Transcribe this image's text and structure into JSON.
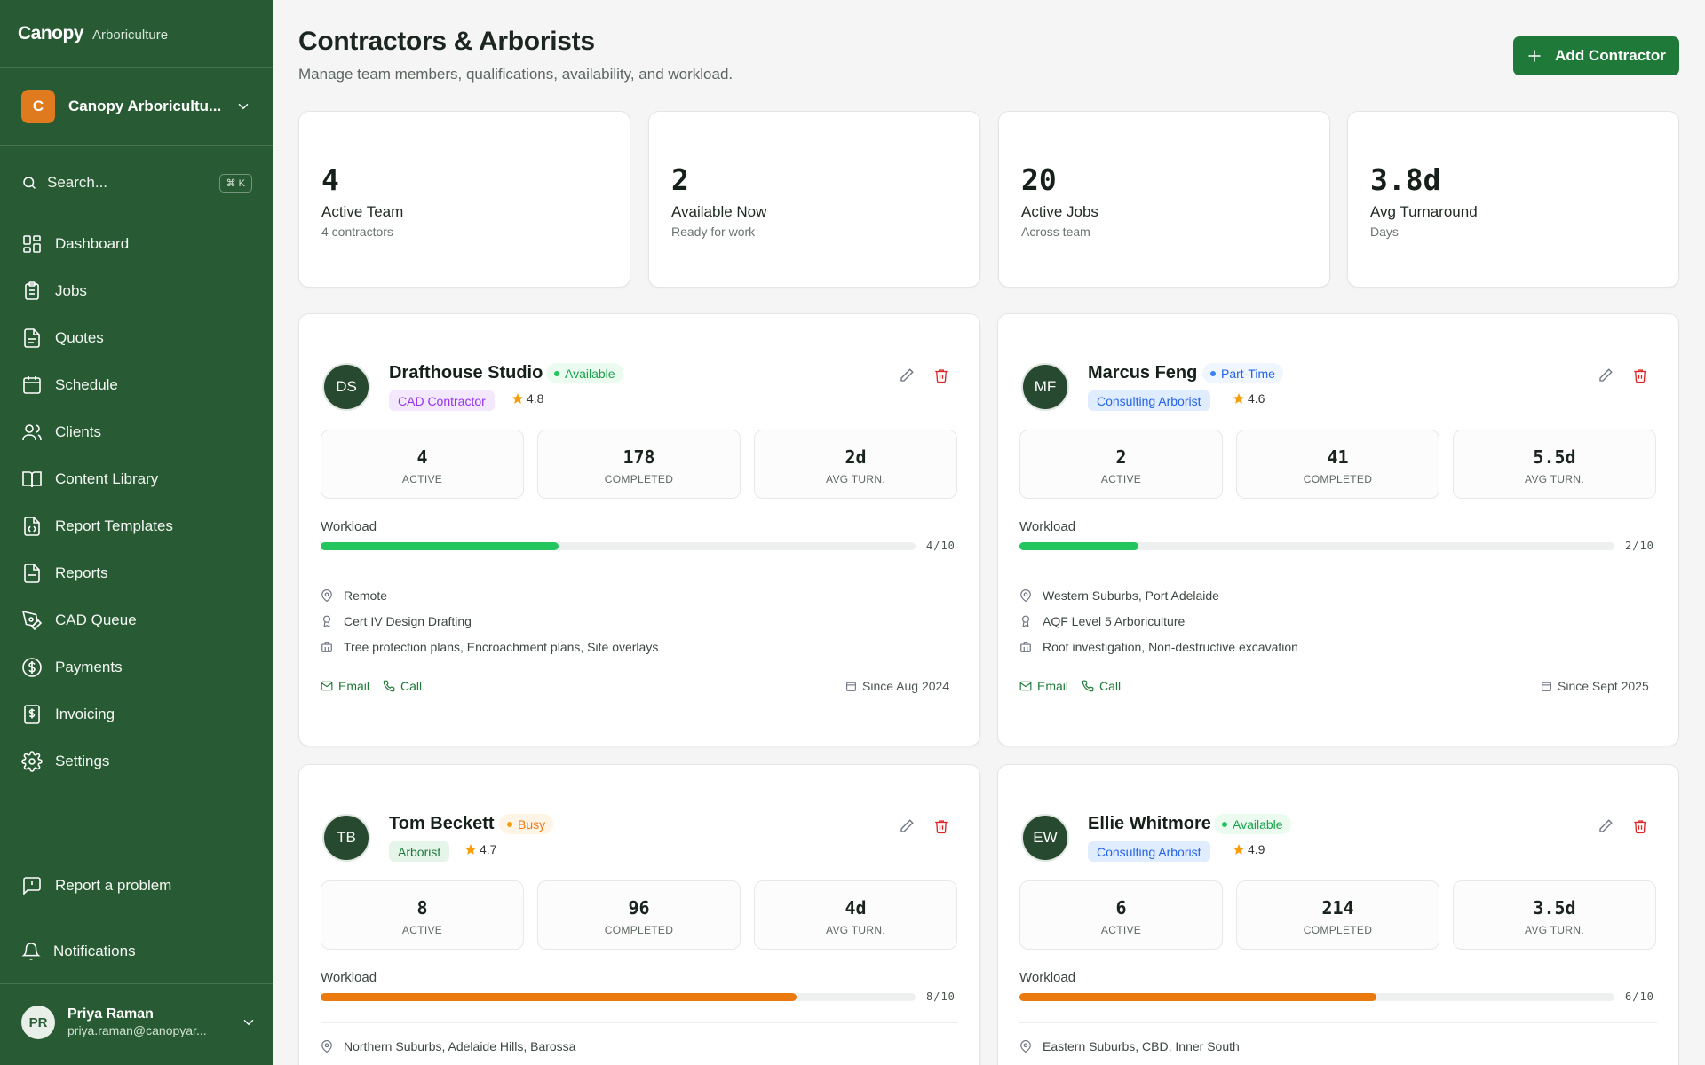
{
  "sidebar": {
    "brand": "Canopy",
    "brand_sub": "Arboriculture",
    "org": {
      "initial": "C",
      "name": "Canopy Arboricultu..."
    },
    "search": {
      "placeholder": "Search...",
      "shortcut": "⌘ K"
    },
    "nav": [
      {
        "label": "Dashboard",
        "icon": "dashboard-icon"
      },
      {
        "label": "Jobs",
        "icon": "clipboard-icon"
      },
      {
        "label": "Quotes",
        "icon": "file-text-icon"
      },
      {
        "label": "Schedule",
        "icon": "calendar-icon"
      },
      {
        "label": "Clients",
        "icon": "users-icon"
      },
      {
        "label": "Content Library",
        "icon": "book-icon"
      },
      {
        "label": "Report Templates",
        "icon": "file-code-icon"
      },
      {
        "label": "Reports",
        "icon": "file-icon"
      },
      {
        "label": "CAD Queue",
        "icon": "pen-tool-icon"
      },
      {
        "label": "Payments",
        "icon": "dollar-circle-icon"
      },
      {
        "label": "Invoicing",
        "icon": "invoice-icon"
      },
      {
        "label": "Settings",
        "icon": "gear-icon"
      }
    ],
    "report_problem": "Report a problem",
    "notifications": "Notifications",
    "user": {
      "initials": "PR",
      "name": "Priya Raman",
      "email": "priya.raman@canopyar..."
    }
  },
  "header": {
    "title": "Contractors & Arborists",
    "subtitle": "Manage team members, qualifications, availability, and workload.",
    "add_label": "Add Contractor"
  },
  "stats": [
    {
      "value": "4",
      "label": "Active Team",
      "sub": "4 contractors"
    },
    {
      "value": "2",
      "label": "Available Now",
      "sub": "Ready for work"
    },
    {
      "value": "20",
      "label": "Active Jobs",
      "sub": "Across team"
    },
    {
      "value": "3.8d",
      "label": "Avg Turnaround",
      "sub": "Days"
    }
  ],
  "labels": {
    "active": "ACTIVE",
    "completed": "COMPLETED",
    "avg_turn": "AVG TURN.",
    "workload": "Workload",
    "email": "Email",
    "call": "Call"
  },
  "colors": {
    "sidebar": "#285b34",
    "primary": "#1f7a3a",
    "workload_low": "#22c55e",
    "workload_high": "#ea7a0e",
    "delete": "#dc2626"
  },
  "contractors": [
    {
      "initials": "DS",
      "name": "Drafthouse Studio",
      "status": "Available",
      "role": "CAD Contractor",
      "rating": "4.8",
      "active": "4",
      "completed": "178",
      "avg_turn": "2d",
      "workload": 0.4,
      "workload_text": "4/10",
      "location": "Remote",
      "qualification": "Cert IV Design Drafting",
      "services": "Tree protection plans, Encroachment plans, Site overlays",
      "since": "Since Aug 2024"
    },
    {
      "initials": "MF",
      "name": "Marcus Feng",
      "status": "Part-Time",
      "role": "Consulting Arborist",
      "rating": "4.6",
      "active": "2",
      "completed": "41",
      "avg_turn": "5.5d",
      "workload": 0.2,
      "workload_text": "2/10",
      "location": "Western Suburbs, Port Adelaide",
      "qualification": "AQF Level 5 Arboriculture",
      "services": "Root investigation, Non-destructive excavation",
      "since": "Since Sept 2025"
    },
    {
      "initials": "TB",
      "name": "Tom Beckett",
      "status": "Busy",
      "role": "Arborist",
      "rating": "4.7",
      "active": "8",
      "completed": "96",
      "avg_turn": "4d",
      "workload": 0.8,
      "workload_text": "8/10",
      "location": "Northern Suburbs, Adelaide Hills, Barossa"
    },
    {
      "initials": "EW",
      "name": "Ellie Whitmore",
      "status": "Available",
      "role": "Consulting Arborist",
      "rating": "4.9",
      "active": "6",
      "completed": "214",
      "avg_turn": "3.5d",
      "workload": 0.6,
      "workload_text": "6/10",
      "location": "Eastern Suburbs, CBD, Inner South"
    }
  ]
}
